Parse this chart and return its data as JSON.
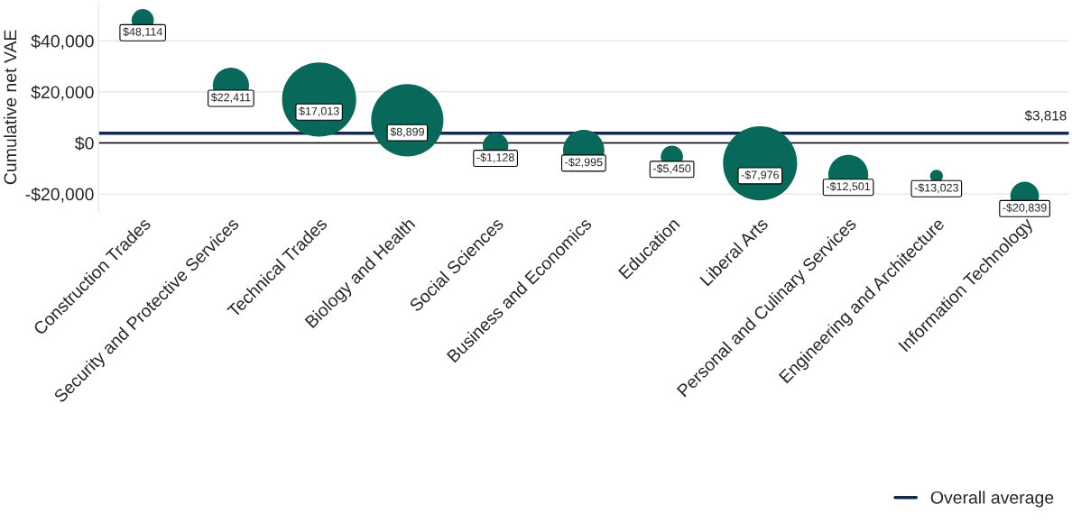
{
  "chart_data": {
    "type": "bubble",
    "categories": [
      "Construction Trades",
      "Security and Protective Services",
      "Technical Trades",
      "Biology and Health",
      "Social Sciences",
      "Business and Economics",
      "Education",
      "Liberal Arts",
      "Personal and Culinary Services",
      "Engineering and Architecture",
      "Information Technology"
    ],
    "series": [
      {
        "color": "#08695a",
        "values": [
          48114,
          22411,
          17013,
          8899,
          -1128,
          -2995,
          -5450,
          -7976,
          -12501,
          -13023,
          -20839
        ],
        "sizes": [
          0.09,
          0.24,
          1.0,
          0.95,
          0.12,
          0.31,
          0.09,
          1.0,
          0.29,
          0.03,
          0.15
        ],
        "value_labels": [
          "$48,114",
          "$22,411",
          "$17,013",
          "$8,899",
          "-$1,128",
          "-$2,995",
          "-$5,450",
          "-$7,976",
          "-$12,501",
          "-$13,023",
          "-$20,839"
        ]
      }
    ],
    "ylabel": "Cumulative net VAE",
    "ylim": [
      -27000,
      55000
    ],
    "yticks": [
      {
        "value": -20000,
        "label": "-$20,000"
      },
      {
        "value": 0,
        "label": "$0"
      },
      {
        "value": 20000,
        "label": "$20,000"
      },
      {
        "value": 40000,
        "label": "$40,000"
      }
    ],
    "annotations": [
      {
        "text": "$3,818",
        "y": 3818
      }
    ],
    "ref_lines": [
      {
        "axis": "y",
        "value": 3818,
        "label": "Overall average",
        "color": "#13294b"
      },
      {
        "axis": "y",
        "value": 0,
        "label": null,
        "color": "#000000"
      }
    ],
    "grid": "y",
    "legend": "bottom right"
  }
}
